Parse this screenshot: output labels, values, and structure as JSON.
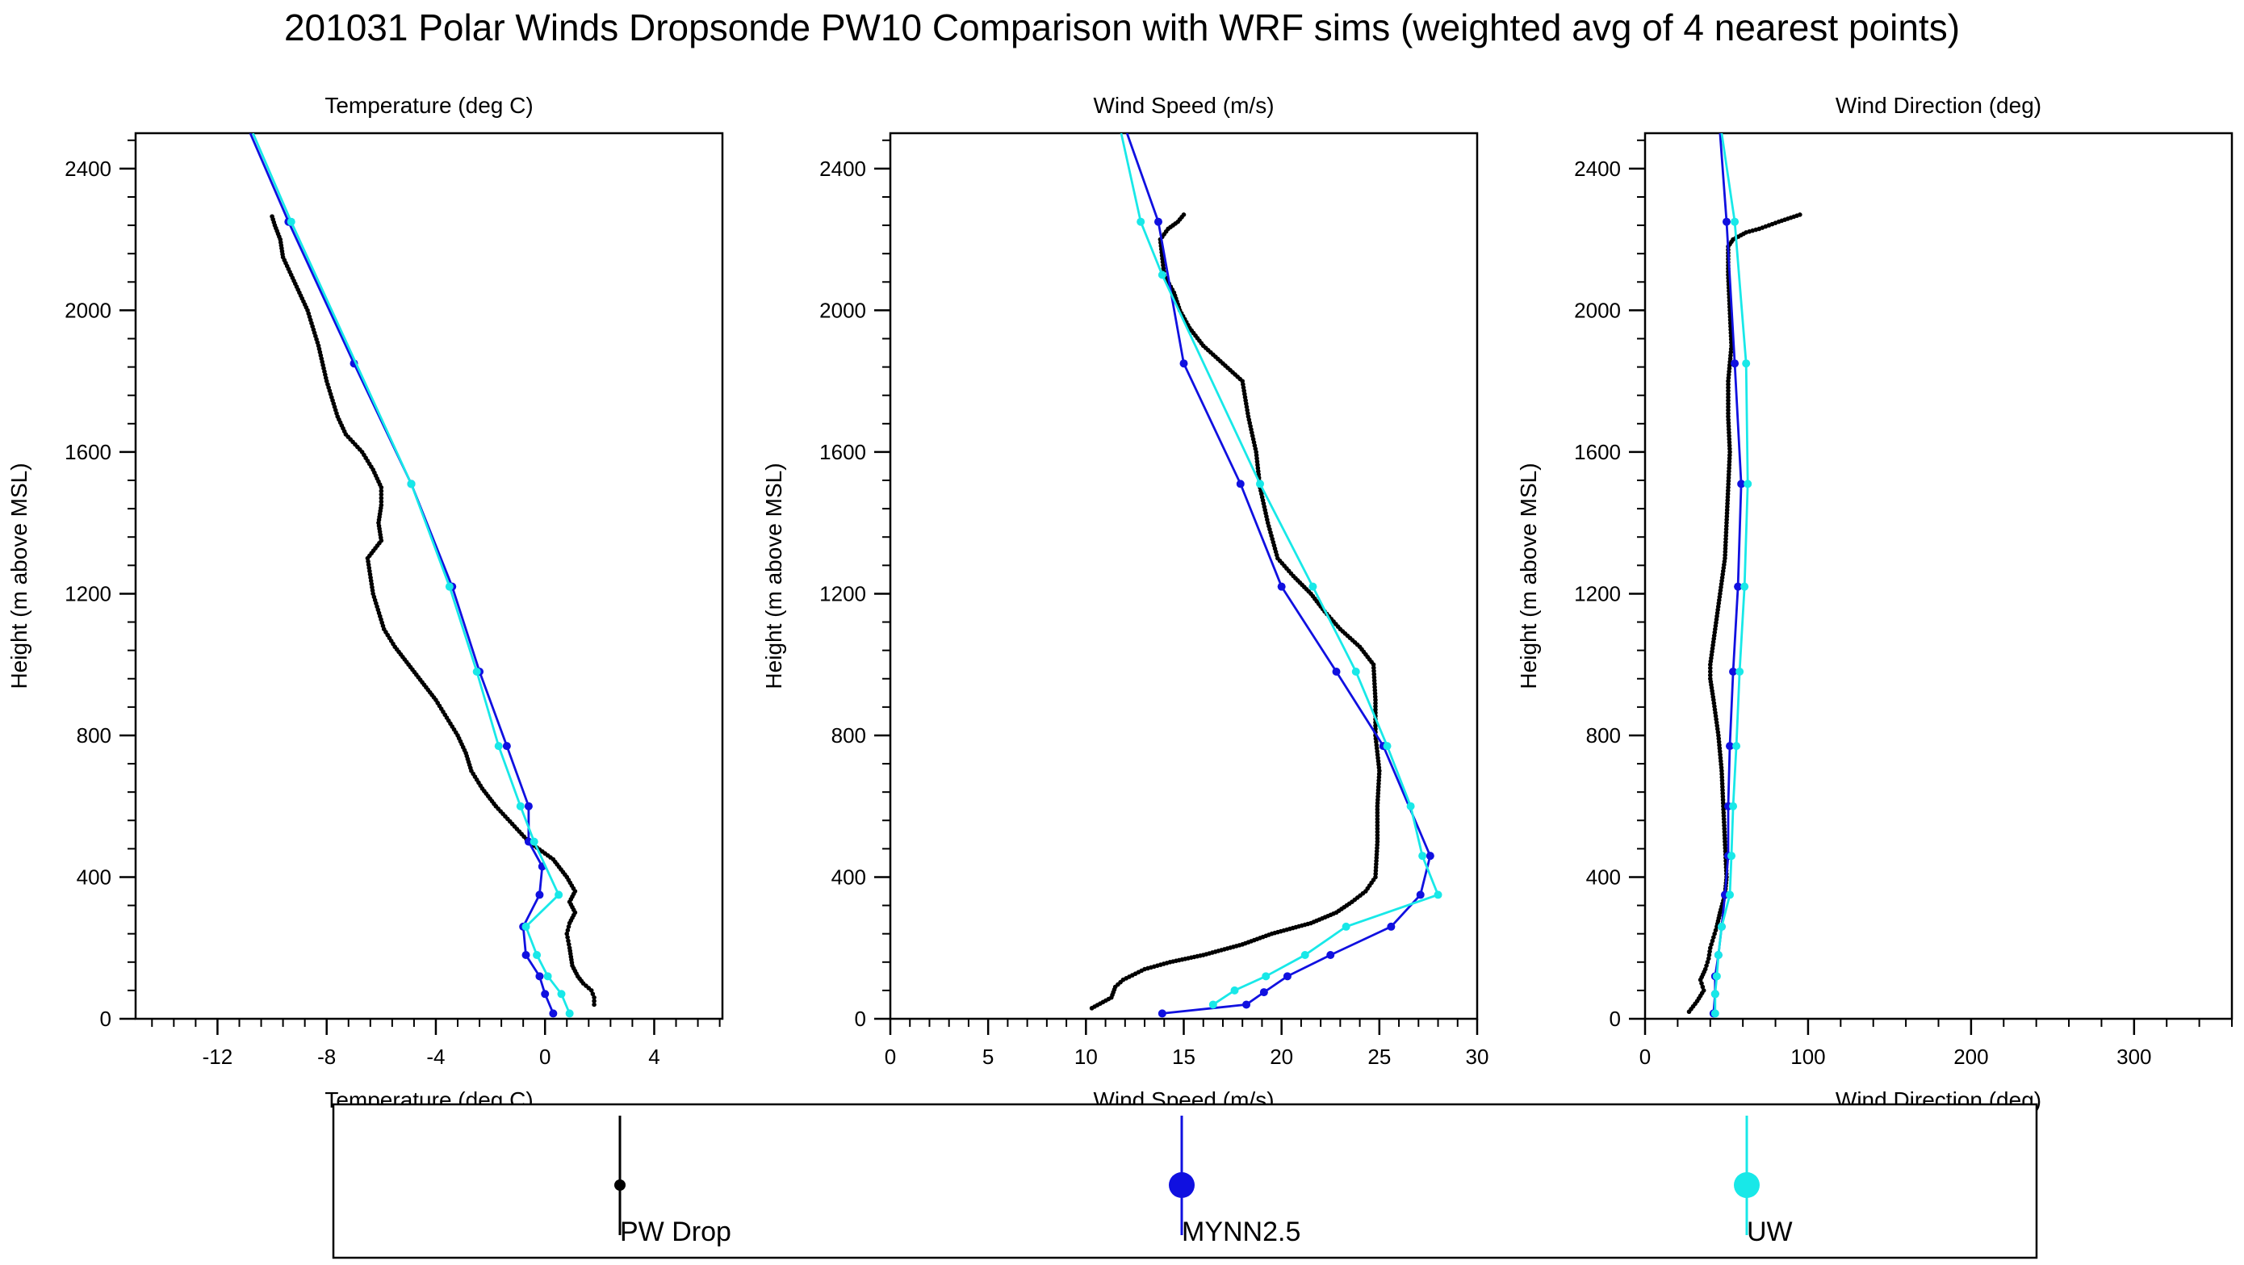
{
  "title": "201031 Polar Winds Dropsonde PW10 Comparison with WRF sims (weighted avg of 4 nearest points)",
  "colors": {
    "drop": "#000000",
    "mynn": "#1010e0",
    "uw": "#18e8e8"
  },
  "legend": {
    "placement": "bottom",
    "entries": [
      {
        "key": "drop",
        "label": "PW Drop",
        "color": "#000000",
        "marker": "dot"
      },
      {
        "key": "mynn",
        "label": "MYNN2.5",
        "color": "#1010e0",
        "marker": "dot"
      },
      {
        "key": "uw",
        "label": "UW",
        "color": "#18e8e8",
        "marker": "dot"
      }
    ]
  },
  "chart_data": [
    {
      "type": "line",
      "title": "Temperature (deg C)",
      "xlabel": "Temperature (deg C)",
      "ylabel": "Height (m above MSL)",
      "xlim": [
        -15,
        6.5
      ],
      "ylim": [
        0,
        2500
      ],
      "xticks": [
        -12,
        -8,
        -4,
        0,
        4
      ],
      "xtick_labels": [
        "-12",
        "-8",
        "-4",
        "0",
        "4"
      ],
      "yticks": [
        0,
        400,
        800,
        1200,
        1600,
        2000,
        2400
      ],
      "ytick_labels": [
        "0",
        "400",
        "800",
        "1200",
        "1600",
        "2000",
        "2400"
      ],
      "grid": false,
      "series": [
        {
          "key": "drop",
          "name": "PW Drop",
          "style": "dots",
          "points": [
            [
              1.8,
              40
            ],
            [
              1.8,
              60
            ],
            [
              1.7,
              80
            ],
            [
              1.4,
              100
            ],
            [
              1.2,
              120
            ],
            [
              1.0,
              150
            ],
            [
              0.9,
              200
            ],
            [
              0.8,
              240
            ],
            [
              0.9,
              270
            ],
            [
              1.1,
              300
            ],
            [
              0.9,
              330
            ],
            [
              1.1,
              360
            ],
            [
              0.8,
              400
            ],
            [
              0.3,
              450
            ],
            [
              -0.6,
              500
            ],
            [
              -1.2,
              550
            ],
            [
              -1.8,
              600
            ],
            [
              -2.3,
              650
            ],
            [
              -2.7,
              700
            ],
            [
              -2.9,
              750
            ],
            [
              -3.2,
              800
            ],
            [
              -3.6,
              850
            ],
            [
              -4.0,
              900
            ],
            [
              -4.5,
              950
            ],
            [
              -5.0,
              1000
            ],
            [
              -5.5,
              1050
            ],
            [
              -5.9,
              1100
            ],
            [
              -6.3,
              1200
            ],
            [
              -6.5,
              1300
            ],
            [
              -6.0,
              1350
            ],
            [
              -6.1,
              1400
            ],
            [
              -6.0,
              1450
            ],
            [
              -6.0,
              1500
            ],
            [
              -6.3,
              1550
            ],
            [
              -6.7,
              1600
            ],
            [
              -7.3,
              1650
            ],
            [
              -7.6,
              1700
            ],
            [
              -8.0,
              1800
            ],
            [
              -8.3,
              1900
            ],
            [
              -8.7,
              2000
            ],
            [
              -9.0,
              2050
            ],
            [
              -9.3,
              2100
            ],
            [
              -9.6,
              2150
            ],
            [
              -9.7,
              2200
            ],
            [
              -9.9,
              2240
            ],
            [
              -10.0,
              2265
            ]
          ]
        },
        {
          "key": "mynn",
          "name": "MYNN2.5",
          "style": "line",
          "points": [
            [
              0.3,
              15
            ],
            [
              0.0,
              70
            ],
            [
              -0.2,
              120
            ],
            [
              -0.7,
              180
            ],
            [
              -0.8,
              260
            ],
            [
              -0.2,
              350
            ],
            [
              -0.1,
              430
            ],
            [
              -0.6,
              500
            ],
            [
              -0.6,
              600
            ],
            [
              -1.4,
              770
            ],
            [
              -2.4,
              980
            ],
            [
              -3.4,
              1220
            ],
            [
              -4.9,
              1510
            ],
            [
              -7.0,
              1850
            ],
            [
              -9.4,
              2250
            ],
            [
              -10.8,
              2500
            ]
          ]
        },
        {
          "key": "uw",
          "name": "UW",
          "style": "line",
          "points": [
            [
              0.9,
              15
            ],
            [
              0.6,
              70
            ],
            [
              0.1,
              120
            ],
            [
              -0.3,
              180
            ],
            [
              -0.7,
              260
            ],
            [
              0.5,
              350
            ],
            [
              -0.4,
              500
            ],
            [
              -0.9,
              600
            ],
            [
              -1.7,
              770
            ],
            [
              -2.5,
              980
            ],
            [
              -3.5,
              1220
            ],
            [
              -4.9,
              1510
            ],
            [
              -9.3,
              2250
            ],
            [
              -10.7,
              2500
            ]
          ]
        }
      ]
    },
    {
      "type": "line",
      "title": "Wind Speed (m/s)",
      "xlabel": "Wind Speed (m/s)",
      "ylabel": "Height (m above MSL)",
      "xlim": [
        0,
        30
      ],
      "ylim": [
        0,
        2500
      ],
      "xticks": [
        0,
        5,
        10,
        15,
        20,
        25,
        30
      ],
      "xtick_labels": [
        "0",
        "5",
        "10",
        "15",
        "20",
        "25",
        "30"
      ],
      "yticks": [
        0,
        400,
        800,
        1200,
        1600,
        2000,
        2400
      ],
      "ytick_labels": [
        "0",
        "400",
        "800",
        "1200",
        "1600",
        "2000",
        "2400"
      ],
      "grid": false,
      "series": [
        {
          "key": "drop",
          "name": "PW Drop",
          "style": "dots",
          "points": [
            [
              10.3,
              30
            ],
            [
              11.3,
              60
            ],
            [
              11.5,
              90
            ],
            [
              11.9,
              110
            ],
            [
              13.0,
              140
            ],
            [
              14.3,
              160
            ],
            [
              16.0,
              180
            ],
            [
              18.0,
              210
            ],
            [
              19.5,
              240
            ],
            [
              21.5,
              270
            ],
            [
              22.8,
              300
            ],
            [
              23.6,
              330
            ],
            [
              24.3,
              360
            ],
            [
              24.8,
              400
            ],
            [
              24.9,
              500
            ],
            [
              24.9,
              600
            ],
            [
              25.0,
              700
            ],
            [
              24.8,
              800
            ],
            [
              24.8,
              900
            ],
            [
              24.7,
              1000
            ],
            [
              24.0,
              1050
            ],
            [
              23.0,
              1100
            ],
            [
              22.2,
              1150
            ],
            [
              21.5,
              1200
            ],
            [
              20.6,
              1250
            ],
            [
              19.8,
              1300
            ],
            [
              19.3,
              1400
            ],
            [
              18.9,
              1500
            ],
            [
              18.7,
              1600
            ],
            [
              18.3,
              1700
            ],
            [
              18.0,
              1800
            ],
            [
              17.0,
              1850
            ],
            [
              16.0,
              1900
            ],
            [
              15.3,
              1950
            ],
            [
              14.8,
              2000
            ],
            [
              14.5,
              2050
            ],
            [
              14.0,
              2100
            ],
            [
              13.8,
              2200
            ],
            [
              14.2,
              2230
            ],
            [
              14.7,
              2250
            ],
            [
              15.0,
              2270
            ]
          ]
        },
        {
          "key": "mynn",
          "name": "MYNN2.5",
          "style": "line",
          "points": [
            [
              13.9,
              15
            ],
            [
              18.2,
              40
            ],
            [
              19.1,
              75
            ],
            [
              20.3,
              120
            ],
            [
              22.5,
              180
            ],
            [
              25.6,
              260
            ],
            [
              27.1,
              350
            ],
            [
              27.6,
              460
            ],
            [
              25.2,
              770
            ],
            [
              22.8,
              980
            ],
            [
              20.0,
              1220
            ],
            [
              17.9,
              1510
            ],
            [
              15.0,
              1850
            ],
            [
              13.7,
              2250
            ],
            [
              12.1,
              2500
            ]
          ]
        },
        {
          "key": "uw",
          "name": "UW",
          "style": "line",
          "points": [
            [
              16.5,
              40
            ],
            [
              17.6,
              80
            ],
            [
              19.2,
              120
            ],
            [
              21.2,
              180
            ],
            [
              23.3,
              260
            ],
            [
              28.0,
              350
            ],
            [
              27.2,
              460
            ],
            [
              26.6,
              600
            ],
            [
              25.4,
              770
            ],
            [
              23.8,
              980
            ],
            [
              21.6,
              1220
            ],
            [
              18.9,
              1510
            ],
            [
              13.9,
              2100
            ],
            [
              12.8,
              2250
            ],
            [
              11.8,
              2500
            ]
          ]
        }
      ]
    },
    {
      "type": "line",
      "title": "Wind Direction (deg)",
      "xlabel": "Wind Direction (deg)",
      "ylabel": "Height (m above MSL)",
      "xlim": [
        0,
        360
      ],
      "ylim": [
        0,
        2500
      ],
      "xticks": [
        0,
        100,
        200,
        300
      ],
      "xtick_labels": [
        "0",
        "100",
        "200",
        "300"
      ],
      "yticks": [
        0,
        400,
        800,
        1200,
        1600,
        2000,
        2400
      ],
      "ytick_labels": [
        "0",
        "400",
        "800",
        "1200",
        "1600",
        "2000",
        "2400"
      ],
      "grid": false,
      "series": [
        {
          "key": "drop",
          "name": "PW Drop",
          "style": "dots",
          "points": [
            [
              27,
              20
            ],
            [
              32,
              50
            ],
            [
              36,
              80
            ],
            [
              34,
              110
            ],
            [
              37,
              140
            ],
            [
              39,
              170
            ],
            [
              40,
              200
            ],
            [
              42,
              230
            ],
            [
              44,
              260
            ],
            [
              46,
              300
            ],
            [
              49,
              350
            ],
            [
              50,
              400
            ],
            [
              49,
              500
            ],
            [
              48,
              600
            ],
            [
              47,
              700
            ],
            [
              45,
              800
            ],
            [
              42,
              900
            ],
            [
              40,
              960
            ],
            [
              40,
              1000
            ],
            [
              43,
              1100
            ],
            [
              46,
              1200
            ],
            [
              49,
              1300
            ],
            [
              50,
              1400
            ],
            [
              51,
              1500
            ],
            [
              52,
              1600
            ],
            [
              51,
              1700
            ],
            [
              51,
              1800
            ],
            [
              53,
              1900
            ],
            [
              52,
              2000
            ],
            [
              51,
              2100
            ],
            [
              51,
              2180
            ],
            [
              54,
              2200
            ],
            [
              62,
              2220
            ],
            [
              70,
              2230
            ],
            [
              82,
              2250
            ],
            [
              95,
              2270
            ]
          ]
        },
        {
          "key": "mynn",
          "name": "MYNN2.5",
          "style": "line",
          "points": [
            [
              42,
              15
            ],
            [
              43,
              70
            ],
            [
              43,
              120
            ],
            [
              45,
              180
            ],
            [
              47,
              260
            ],
            [
              49,
              350
            ],
            [
              51,
              460
            ],
            [
              51,
              600
            ],
            [
              52,
              770
            ],
            [
              54,
              980
            ],
            [
              57,
              1220
            ],
            [
              59,
              1510
            ],
            [
              55,
              1850
            ],
            [
              50,
              2250
            ],
            [
              46,
              2500
            ]
          ]
        },
        {
          "key": "uw",
          "name": "UW",
          "style": "line",
          "points": [
            [
              43,
              15
            ],
            [
              43,
              70
            ],
            [
              44,
              120
            ],
            [
              45,
              180
            ],
            [
              47,
              260
            ],
            [
              52,
              350
            ],
            [
              53,
              460
            ],
            [
              54,
              600
            ],
            [
              56,
              770
            ],
            [
              58,
              980
            ],
            [
              61,
              1220
            ],
            [
              63,
              1510
            ],
            [
              62,
              1850
            ],
            [
              55,
              2250
            ],
            [
              47,
              2500
            ]
          ]
        }
      ]
    }
  ]
}
